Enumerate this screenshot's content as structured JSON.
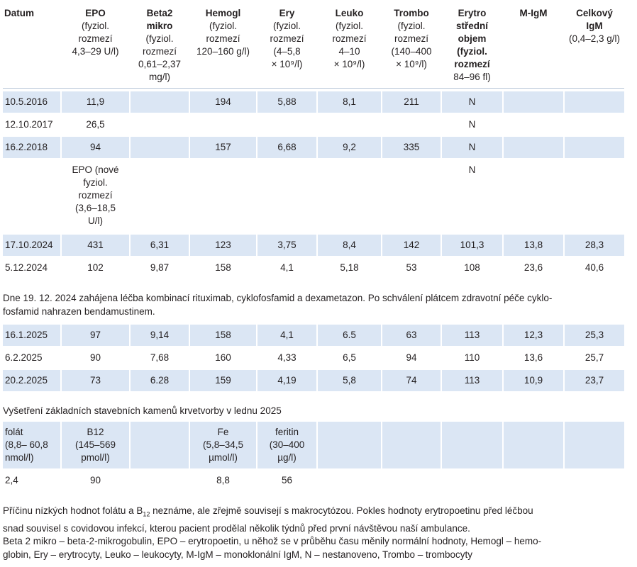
{
  "headers": [
    {
      "b": "Datum",
      "lines": []
    },
    {
      "b": "EPO",
      "lines": [
        "(fyziol.",
        "rozmezí",
        "4,3–29 U/l)"
      ]
    },
    {
      "b": "Beta2",
      "b2": "mikro",
      "lines": [
        "(fyziol.",
        "rozmezí",
        "0,61–2,37",
        "mg/l)"
      ]
    },
    {
      "b": "Hemogl",
      "lines": [
        "(fyziol.",
        "rozmezí",
        "120–160 g/l)"
      ]
    },
    {
      "b": "Ery",
      "lines": [
        "(fyziol.",
        "rozmezí",
        "(4–5,8",
        "× 10⁹/l)"
      ]
    },
    {
      "b": "Leuko",
      "lines": [
        "(fyziol.",
        "rozmezí",
        "4–10",
        "× 10⁹/l)"
      ]
    },
    {
      "b": "Trombo",
      "lines": [
        "(fyziol.",
        "rozmezí",
        "(140–400",
        "× 10⁹/l)"
      ]
    },
    {
      "b": "Erytro",
      "b2": "střední",
      "b3": "objem",
      "b4": "(fyziol.",
      "b5": "rozmezí",
      "lines": [
        "84–96 fl)"
      ]
    },
    {
      "b": "M-IgM",
      "lines": []
    },
    {
      "b": "Celkový",
      "b2": "IgM",
      "lines": [
        "(0,4–2,3 g/l)"
      ]
    }
  ],
  "rows1": [
    {
      "shade": true,
      "cells": [
        "10.5.2016",
        "11,9",
        "",
        "194",
        "5,88",
        "8,1",
        "211",
        "N",
        "",
        ""
      ]
    },
    {
      "shade": false,
      "cells": [
        "12.10.2017",
        "26,5",
        "",
        "",
        "",
        "",
        "",
        "N",
        "",
        ""
      ]
    },
    {
      "shade": true,
      "cells": [
        "16.2.2018",
        "94",
        "",
        "157",
        "6,68",
        "9,2",
        "335",
        "N",
        "",
        ""
      ]
    }
  ],
  "epo_new": [
    "EPO (nové",
    "fyziol.",
    "rozmezí",
    "(3,6–18,5",
    "U/l)"
  ],
  "epo_new_n": "N",
  "rows2": [
    {
      "shade": true,
      "cells": [
        "17.10.2024",
        "431",
        "6,31",
        "123",
        "3,75",
        "8,4",
        "142",
        "101,3",
        "13,8",
        "28,3"
      ]
    },
    {
      "shade": false,
      "cells": [
        "5.12.2024",
        "102",
        "9,87",
        "158",
        "4,1",
        "5,18",
        "53",
        "108",
        "23,6",
        "40,6"
      ]
    }
  ],
  "treatment_note": "Dne 19. 12. 2024 zahájena léčba kombinací rituximab, cyklofosfamid a dexametazon. Po schválení plátcem zdravotní péče cyklofosfamid nahrazen bendamustinem.",
  "treatment_note_l1": "Dne 19. 12. 2024 zahájena léčba kombinací rituximab, cyklofosfamid a dexametazon. Po schválení plátcem zdravotní péče cyklo-",
  "treatment_note_l2": "fosfamid nahrazen bendamustinem.",
  "rows3": [
    {
      "shade": true,
      "cells": [
        "16.1.2025",
        "97",
        "9,14",
        "158",
        "4,1",
        "6.5",
        "63",
        "113",
        "12,3",
        "25,3"
      ]
    },
    {
      "shade": false,
      "cells": [
        "6.2.2025",
        "90",
        "7,68",
        "160",
        "4,33",
        "6,5",
        "94",
        "110",
        "13,6",
        "25,7"
      ]
    },
    {
      "shade": true,
      "cells": [
        "20.2.2025",
        "73",
        "6.28",
        "159",
        "4,19",
        "5,8",
        "74",
        "113",
        "10,9",
        "23,7"
      ]
    }
  ],
  "blood_title": "Vyšetření základních stavebních kamenů krvetvorby v lednu 2025",
  "blood_head": [
    [
      "folát",
      "(8,8– 60,8",
      "nmol/l)"
    ],
    [
      "B12",
      "(145–569",
      "pmol/l)"
    ],
    [],
    [
      "Fe",
      "(5,8–34,5",
      "µmol/l)"
    ],
    [
      "feritin",
      "(30–400",
      "µg/l)"
    ],
    [],
    [],
    [],
    [],
    []
  ],
  "blood_vals": [
    "2,4",
    "90",
    "",
    "8,8",
    "56",
    "",
    "",
    "",
    "",
    ""
  ],
  "cause_l1_a": "Příčinu nízkých hodnot folátu a B",
  "cause_sub": "12",
  "cause_l1_b": " neznáme, ale zřejmě souvisejí s makrocytózou. Pokles hodnoty erytropoetinu před léčbou",
  "cause_l2": "snad souvisel s covidovou infekcí, kterou pacient prodělal několik týdnů před první návštěvou naší ambulance.",
  "legend_l1": "Beta 2 mikro – beta-2-mikrogobulin, EPO – erytropoetin, u něhož se v průběhu času měnily normální hodnoty, Hemogl – hemo-",
  "legend_l2": "globin, Ery – erytrocyty, Leuko – leukocyty, M-IgM – monoklonální IgM, N – nestanoveno, Trombo – trombocyty"
}
